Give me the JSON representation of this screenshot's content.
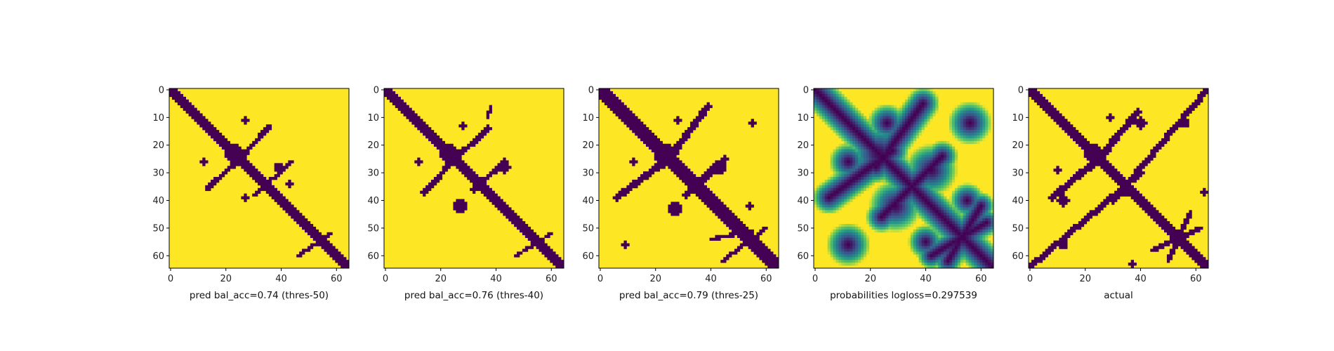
{
  "chart_data": [
    {
      "type": "heatmap",
      "title": "",
      "xlabel": "pred bal_acc=0.74 (thres-50)",
      "ylabel": "",
      "matrix_size": [
        65,
        65
      ],
      "value_range": [
        0,
        1
      ],
      "binary": true,
      "xticks": [
        "0",
        "20",
        "40",
        "60"
      ],
      "yticks": [
        "0",
        "10",
        "20",
        "30",
        "40",
        "50",
        "60"
      ],
      "segments": [
        {
          "from": [
            0,
            0
          ],
          "to": [
            64,
            64
          ],
          "width": 1.6
        },
        {
          "from": [
            22,
            28
          ],
          "to": [
            36,
            13
          ],
          "width": 0.9
        },
        {
          "from": [
            28,
            22
          ],
          "to": [
            13,
            36
          ],
          "width": 0.9
        },
        {
          "from": [
            30,
            38
          ],
          "to": [
            44,
            26
          ],
          "width": 0.7
        },
        {
          "from": [
            58,
            52
          ],
          "to": [
            46,
            60
          ],
          "width": 0.6
        }
      ],
      "blobs": [
        {
          "center": [
            23,
            23
          ],
          "radius": 3.2
        },
        {
          "center": [
            27,
            11
          ],
          "radius": 1.1
        },
        {
          "center": [
            12,
            26
          ],
          "radius": 1.1
        },
        {
          "center": [
            39,
            28
          ],
          "radius": 1.6
        },
        {
          "center": [
            27,
            39
          ],
          "radius": 1.4
        },
        {
          "center": [
            43,
            34
          ],
          "radius": 1.0
        }
      ]
    },
    {
      "type": "heatmap",
      "title": "",
      "xlabel": "pred bal_acc=0.76 (thres-40)",
      "ylabel": "",
      "matrix_size": [
        65,
        65
      ],
      "value_range": [
        0,
        1
      ],
      "binary": true,
      "xticks": [
        "0",
        "20",
        "40",
        "60"
      ],
      "yticks": [
        "0",
        "10",
        "20",
        "30",
        "40",
        "50",
        "60"
      ],
      "segments": [
        {
          "from": [
            0,
            0
          ],
          "to": [
            64,
            64
          ],
          "width": 1.9
        },
        {
          "from": [
            23,
            27
          ],
          "to": [
            37,
            14
          ],
          "width": 1.0
        },
        {
          "from": [
            27,
            23
          ],
          "to": [
            14,
            37
          ],
          "width": 1.0
        },
        {
          "from": [
            32,
            36
          ],
          "to": [
            43,
            26
          ],
          "width": 1.0
        },
        {
          "from": [
            60,
            52
          ],
          "to": [
            47,
            60
          ],
          "width": 0.6
        },
        {
          "from": [
            37,
            10
          ],
          "to": [
            38,
            6
          ],
          "width": 0.6
        }
      ],
      "blobs": [
        {
          "center": [
            23,
            23
          ],
          "radius": 3.4
        },
        {
          "center": [
            43,
            28
          ],
          "radius": 2.2
        },
        {
          "center": [
            27,
            42
          ],
          "radius": 2.4
        },
        {
          "center": [
            12,
            26
          ],
          "radius": 1.2
        },
        {
          "center": [
            28,
            13
          ],
          "radius": 1.2
        }
      ]
    },
    {
      "type": "heatmap",
      "title": "",
      "xlabel": "pred bal_acc=0.79 (thres-25)",
      "ylabel": "",
      "matrix_size": [
        65,
        65
      ],
      "value_range": [
        0,
        1
      ],
      "binary": true,
      "xticks": [
        "0",
        "20",
        "40",
        "60"
      ],
      "yticks": [
        "0",
        "10",
        "20",
        "30",
        "40",
        "50",
        "60"
      ],
      "segments": [
        {
          "from": [
            0,
            0
          ],
          "to": [
            64,
            64
          ],
          "width": 2.2
        },
        {
          "from": [
            23,
            27
          ],
          "to": [
            39,
            6
          ],
          "width": 1.2
        },
        {
          "from": [
            27,
            23
          ],
          "to": [
            6,
            39
          ],
          "width": 1.2
        },
        {
          "from": [
            31,
            38
          ],
          "to": [
            45,
            25
          ],
          "width": 1.3
        },
        {
          "from": [
            60,
            50
          ],
          "to": [
            44,
            62
          ],
          "width": 0.7
        },
        {
          "from": [
            55,
            51
          ],
          "to": [
            40,
            54
          ],
          "width": 0.6
        }
      ],
      "blobs": [
        {
          "center": [
            23,
            23
          ],
          "radius": 3.7
        },
        {
          "center": [
            35,
            35
          ],
          "radius": 2.8
        },
        {
          "center": [
            27,
            43
          ],
          "radius": 2.7
        },
        {
          "center": [
            43,
            28
          ],
          "radius": 2.6
        },
        {
          "center": [
            12,
            26
          ],
          "radius": 1.2
        },
        {
          "center": [
            28,
            11
          ],
          "radius": 1.4
        },
        {
          "center": [
            55,
            12
          ],
          "radius": 1.0
        },
        {
          "center": [
            9,
            56
          ],
          "radius": 1.0
        },
        {
          "center": [
            54,
            42
          ],
          "radius": 1.0
        }
      ]
    },
    {
      "type": "heatmap",
      "title": "",
      "xlabel": "probabilities logloss=0.297539",
      "ylabel": "",
      "matrix_size": [
        65,
        65
      ],
      "value_range": [
        0,
        1
      ],
      "binary": false,
      "colormap": [
        "#440154",
        "#3b528b",
        "#21918c",
        "#5ec962",
        "#fde725"
      ],
      "xticks": [
        "0",
        "20",
        "40",
        "60"
      ],
      "yticks": [
        "0",
        "10",
        "20",
        "30",
        "40",
        "50",
        "60"
      ],
      "segments": [
        {
          "from": [
            0,
            0
          ],
          "to": [
            64,
            64
          ],
          "width": 2.0
        },
        {
          "from": [
            22,
            28
          ],
          "to": [
            39,
            5
          ],
          "width": 1.9
        },
        {
          "from": [
            28,
            22
          ],
          "to": [
            5,
            39
          ],
          "width": 1.9
        },
        {
          "from": [
            30,
            40
          ],
          "to": [
            46,
            24
          ],
          "width": 1.8
        },
        {
          "from": [
            40,
            30
          ],
          "to": [
            24,
            46
          ],
          "width": 1.8
        },
        {
          "from": [
            62,
            48
          ],
          "to": [
            42,
            60
          ],
          "width": 1.6
        },
        {
          "from": [
            48,
            62
          ],
          "to": [
            60,
            42
          ],
          "width": 1.6
        }
      ],
      "blobs": [
        {
          "center": [
            23,
            23
          ],
          "radius": 3.5
        },
        {
          "center": [
            42,
            29
          ],
          "radius": 3.0
        },
        {
          "center": [
            29,
            42
          ],
          "radius": 3.0
        },
        {
          "center": [
            12,
            26
          ],
          "radius": 2.2
        },
        {
          "center": [
            26,
            12
          ],
          "radius": 2.2
        },
        {
          "center": [
            56,
            12
          ],
          "radius": 2.5
        },
        {
          "center": [
            12,
            56
          ],
          "radius": 2.5
        },
        {
          "center": [
            55,
            40
          ],
          "radius": 2.0
        },
        {
          "center": [
            40,
            55
          ],
          "radius": 2.0
        }
      ]
    },
    {
      "type": "heatmap",
      "title": "",
      "xlabel": "actual",
      "ylabel": "",
      "matrix_size": [
        65,
        65
      ],
      "value_range": [
        0,
        1
      ],
      "binary": true,
      "xticks": [
        "0",
        "20",
        "40",
        "60"
      ],
      "yticks": [
        "0",
        "10",
        "20",
        "30",
        "40",
        "50",
        "60"
      ],
      "segments": [
        {
          "from": [
            0,
            0
          ],
          "to": [
            64,
            64
          ],
          "width": 1.9
        },
        {
          "from": [
            22,
            28
          ],
          "to": [
            39,
            8
          ],
          "width": 1.2
        },
        {
          "from": [
            28,
            22
          ],
          "to": [
            8,
            39
          ],
          "width": 1.2
        },
        {
          "from": [
            30,
            40
          ],
          "to": [
            64,
            0
          ],
          "width": 1.1
        },
        {
          "from": [
            40,
            30
          ],
          "to": [
            0,
            64
          ],
          "width": 1.1
        },
        {
          "from": [
            50,
            62
          ],
          "to": [
            58,
            44
          ],
          "width": 0.9
        },
        {
          "from": [
            62,
            50
          ],
          "to": [
            44,
            58
          ],
          "width": 0.9
        }
      ],
      "blobs": [
        {
          "center": [
            23,
            23
          ],
          "radius": 3.4
        },
        {
          "center": [
            35,
            36
          ],
          "radius": 2.6
        },
        {
          "center": [
            12,
            40
          ],
          "radius": 2.0
        },
        {
          "center": [
            40,
            12
          ],
          "radius": 2.0
        },
        {
          "center": [
            12,
            56
          ],
          "radius": 1.5
        },
        {
          "center": [
            56,
            12
          ],
          "radius": 1.5
        },
        {
          "center": [
            63,
            37
          ],
          "radius": 1.4
        },
        {
          "center": [
            37,
            63
          ],
          "radius": 1.4
        },
        {
          "center": [
            29,
            10
          ],
          "radius": 1.2
        },
        {
          "center": [
            10,
            29
          ],
          "radius": 1.2
        }
      ]
    }
  ]
}
